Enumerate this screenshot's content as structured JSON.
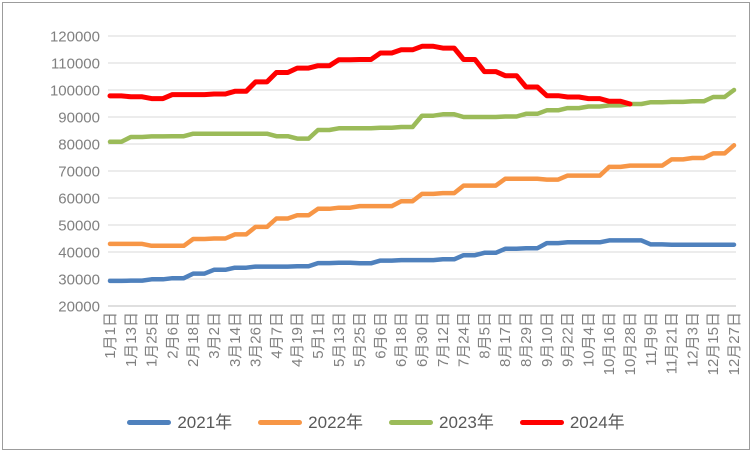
{
  "chart_data": {
    "type": "line",
    "title": "",
    "categories": [
      "1月1日",
      "1月13日",
      "1月25日",
      "2月6日",
      "2月18日",
      "3月2日",
      "3月14日",
      "3月26日",
      "4月7日",
      "4月19日",
      "5月1日",
      "5月13日",
      "5月25日",
      "6月6日",
      "6月18日",
      "6月30日",
      "7月12日",
      "7月24日",
      "8月5日",
      "8月17日",
      "8月29日",
      "9月10日",
      "9月22日",
      "10月4日",
      "10月16日",
      "10月28日",
      "11月9日",
      "11月21日",
      "12月3日",
      "12月15日",
      "12月27日"
    ],
    "series": [
      {
        "name": "2021年",
        "color": "#4F81BD",
        "values": [
          29300,
          29400,
          29900,
          30300,
          32000,
          33400,
          34200,
          34600,
          34600,
          34700,
          35900,
          36000,
          35800,
          36800,
          37000,
          37000,
          37300,
          38800,
          39700,
          41200,
          41400,
          43300,
          43600,
          43600,
          44300,
          44300,
          42800,
          42700,
          42700,
          42700,
          42700
        ]
      },
      {
        "name": "2022年",
        "color": "#F79646",
        "values": [
          43000,
          43000,
          42300,
          42300,
          44800,
          45000,
          46500,
          49300,
          52400,
          53600,
          56000,
          56400,
          57000,
          57000,
          58800,
          61500,
          61800,
          64600,
          64600,
          67100,
          67100,
          66800,
          68300,
          68300,
          71500,
          72000,
          72000,
          74300,
          74800,
          76500,
          79500
        ]
      },
      {
        "name": "2023年",
        "color": "#9BBB59",
        "values": [
          80800,
          82600,
          82800,
          82900,
          83800,
          83800,
          83800,
          83800,
          82900,
          82000,
          85200,
          85800,
          85800,
          86000,
          86300,
          90500,
          91000,
          90000,
          90000,
          90200,
          91200,
          92500,
          93300,
          93900,
          94300,
          94800,
          95500,
          95600,
          95800,
          97400,
          100000
        ]
      },
      {
        "name": "2024年",
        "color": "#FF0000",
        "values": [
          97800,
          97500,
          96800,
          98300,
          98300,
          98500,
          99500,
          103000,
          106500,
          108100,
          109000,
          111200,
          111300,
          113700,
          114900,
          116200,
          115500,
          111300,
          106800,
          105300,
          101100,
          97900,
          97400,
          96800,
          95800,
          94800,
          null,
          null,
          null,
          null,
          null
        ]
      }
    ],
    "y_axis": {
      "min": 20000,
      "max": 120000,
      "step": 10000,
      "tick_labels": [
        "20000",
        "30000",
        "40000",
        "50000",
        "60000",
        "70000",
        "80000",
        "90000",
        "100000",
        "110000",
        "120000"
      ]
    },
    "x_axis": {
      "label_rotation_deg": -90
    },
    "legend": {
      "position": "bottom",
      "entries": [
        "2021年",
        "2022年",
        "2023年",
        "2024年"
      ]
    },
    "grid": true
  },
  "colors": {
    "background": "#FFFFFF",
    "frame_border": "#9C9C9C",
    "gridline": "#D9D9D9",
    "baseline": "#BFBFBF",
    "axis_text": "#808080",
    "legend_text": "#595959"
  }
}
